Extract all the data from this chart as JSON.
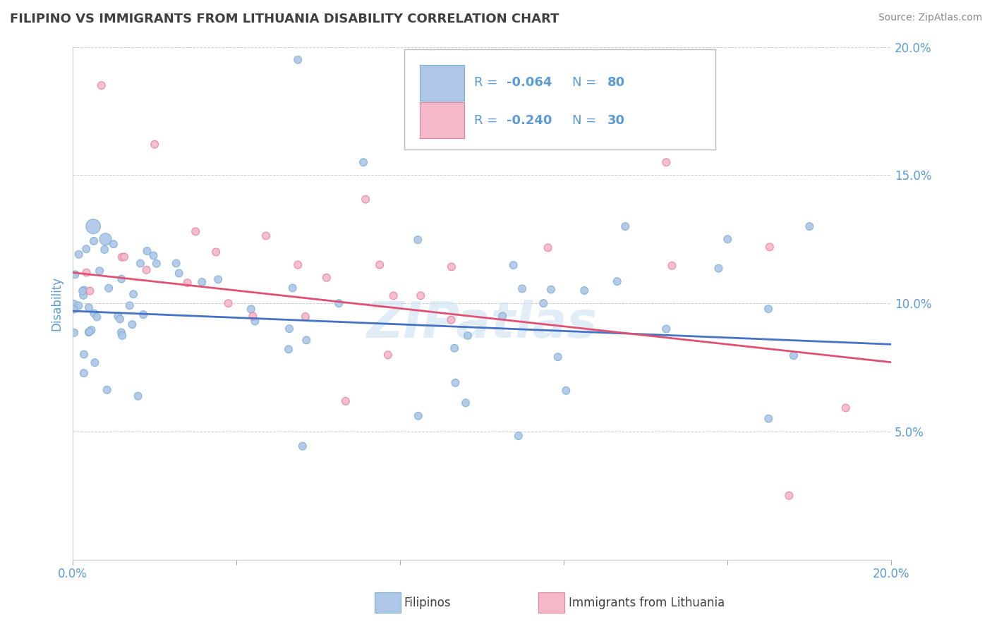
{
  "title": "FILIPINO VS IMMIGRANTS FROM LITHUANIA DISABILITY CORRELATION CHART",
  "source": "Source: ZipAtlas.com",
  "ylabel": "Disability",
  "xlim": [
    0.0,
    0.2
  ],
  "ylim": [
    0.0,
    0.2
  ],
  "series1_name": "Filipinos",
  "series1_color": "#aec6e8",
  "series1_edge_color": "#7aafd4",
  "series1_R": -0.064,
  "series1_N": 80,
  "series1_line_color": "#4472c4",
  "series2_name": "Immigrants from Lithuania",
  "series2_color": "#f4b8c8",
  "series2_edge_color": "#e87fa0",
  "series2_R": -0.24,
  "series2_N": 30,
  "series2_line_color": "#e05070",
  "background_color": "#ffffff",
  "grid_color": "#cccccc",
  "watermark": "ZIPatlas",
  "title_color": "#404040",
  "axis_tick_color": "#5b9bd5",
  "legend_text_color": "#5b9bd5",
  "legend_R1_color": "#e05070",
  "legend_N1_color": "#5b9bd5",
  "legend_R2_color": "#e05070",
  "legend_N2_color": "#5b9bd5",
  "trend1_intercept": 0.097,
  "trend1_slope": -0.065,
  "trend2_intercept": 0.112,
  "trend2_slope": -0.175
}
